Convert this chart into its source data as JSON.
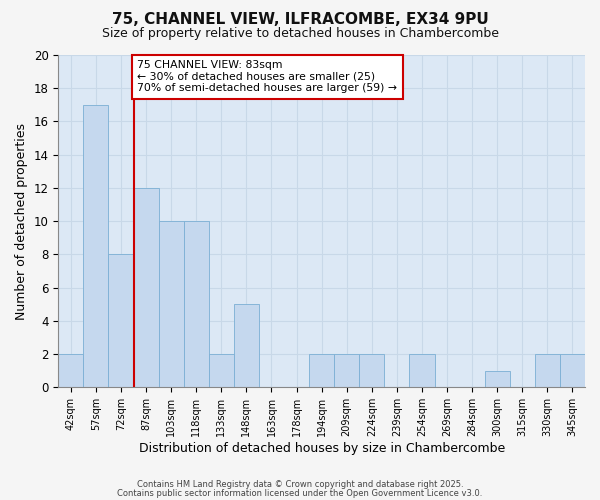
{
  "title1": "75, CHANNEL VIEW, ILFRACOMBE, EX34 9PU",
  "title2": "Size of property relative to detached houses in Chambercombe",
  "xlabel": "Distribution of detached houses by size in Chambercombe",
  "ylabel": "Number of detached properties",
  "categories": [
    "42sqm",
    "57sqm",
    "72sqm",
    "87sqm",
    "103sqm",
    "118sqm",
    "133sqm",
    "148sqm",
    "163sqm",
    "178sqm",
    "194sqm",
    "209sqm",
    "224sqm",
    "239sqm",
    "254sqm",
    "269sqm",
    "284sqm",
    "300sqm",
    "315sqm",
    "330sqm",
    "345sqm"
  ],
  "values": [
    2,
    17,
    8,
    12,
    10,
    10,
    2,
    5,
    0,
    0,
    2,
    2,
    2,
    0,
    2,
    0,
    0,
    1,
    0,
    2,
    2
  ],
  "bar_color": "#c5d8ee",
  "bar_edge_color": "#7bafd4",
  "redline_index": 3,
  "annotation_text": "75 CHANNEL VIEW: 83sqm\n← 30% of detached houses are smaller (25)\n70% of semi-detached houses are larger (59) →",
  "annotation_box_color": "#ffffff",
  "annotation_box_edge": "#cc0000",
  "ylim": [
    0,
    20
  ],
  "yticks": [
    0,
    2,
    4,
    6,
    8,
    10,
    12,
    14,
    16,
    18,
    20
  ],
  "grid_color": "#c8d8e8",
  "bg_color": "#dce8f5",
  "fig_bg_color": "#f5f5f5",
  "footnote1": "Contains HM Land Registry data © Crown copyright and database right 2025.",
  "footnote2": "Contains public sector information licensed under the Open Government Licence v3.0."
}
